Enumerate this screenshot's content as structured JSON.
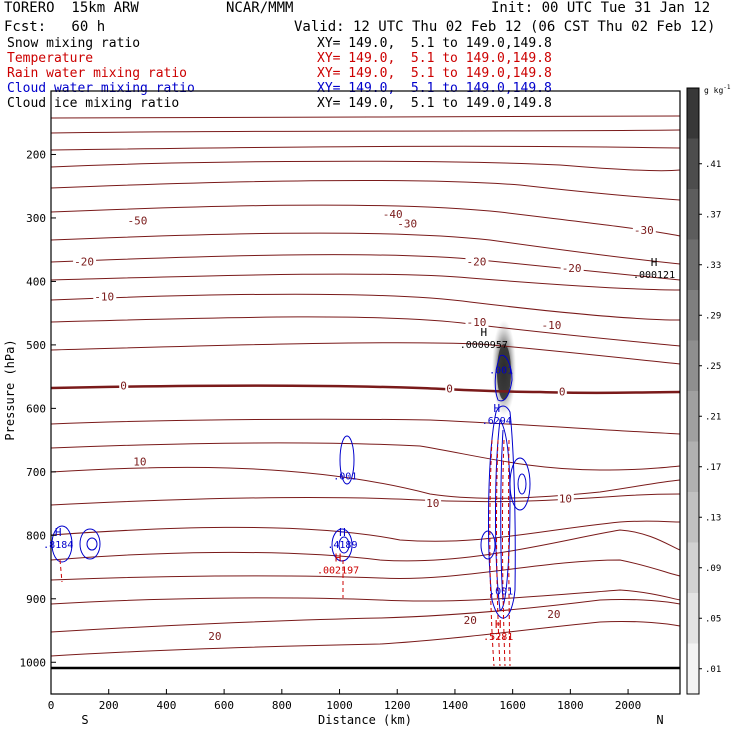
{
  "header": {
    "model": "TORERO  15km ARW",
    "org": "NCAR/MMM",
    "init": "Init: 00 UTC Tue 31 Jan 12",
    "fcst": "Fcst:   60 h",
    "valid": "Valid: 12 UTC Thu 02 Feb 12 (06 CST Thu 02 Feb 12)"
  },
  "fields": [
    {
      "name": "Snow mixing ratio",
      "xy": "XY= 149.0,  5.1 to 149.0,149.8",
      "color": "#000000"
    },
    {
      "name": "Temperature",
      "xy": "XY= 149.0,  5.1 to 149.0,149.8",
      "color": "#cc0000"
    },
    {
      "name": "Rain water mixing ratio",
      "xy": "XY= 149.0,  5.1 to 149.0,149.8",
      "color": "#cc0000"
    },
    {
      "name": "Cloud water mixing ratio",
      "xy": "XY= 149.0,  5.1 to 149.0,149.8",
      "color": "#0000cc"
    },
    {
      "name": "Cloud ice mixing ratio",
      "xy": "XY= 149.0,  5.1 to 149.0,149.8",
      "color": "#000000"
    }
  ],
  "chart_data": {
    "type": "cross-section",
    "xlabel": "Distance (km)",
    "ylabel": "Pressure (hPa)",
    "xlim": [
      0,
      2180
    ],
    "ylim": [
      1050,
      100
    ],
    "x_ticks": [
      0,
      200,
      400,
      600,
      800,
      1000,
      1200,
      1400,
      1600,
      1800,
      2000
    ],
    "y_ticks": [
      200,
      300,
      400,
      500,
      600,
      700,
      800,
      900,
      1000
    ],
    "x_end_labels": {
      "left": "S",
      "right": "N"
    },
    "grid": false,
    "temperature_labels": [
      {
        "text": "-50",
        "x": 265,
        "p": 310
      },
      {
        "text": "-40",
        "x": 1150,
        "p": 300
      },
      {
        "text": "-30",
        "x": 1200,
        "p": 315
      },
      {
        "text": "-30",
        "x": 2020,
        "p": 325
      },
      {
        "text": "-20",
        "x": 80,
        "p": 375
      },
      {
        "text": "-20",
        "x": 1440,
        "p": 375
      },
      {
        "text": "-20",
        "x": 1770,
        "p": 385
      },
      {
        "text": "-10",
        "x": 150,
        "p": 430
      },
      {
        "text": "-10",
        "x": 1440,
        "p": 470
      },
      {
        "text": "-10",
        "x": 1700,
        "p": 475
      },
      {
        "text": "0",
        "x": 240,
        "p": 570
      },
      {
        "text": "0",
        "x": 1370,
        "p": 575
      },
      {
        "text": "0",
        "x": 1760,
        "p": 580
      },
      {
        "text": "10",
        "x": 285,
        "p": 690
      },
      {
        "text": "10",
        "x": 1300,
        "p": 755
      },
      {
        "text": "10",
        "x": 1760,
        "p": 748
      },
      {
        "text": "20",
        "x": 545,
        "p": 965
      },
      {
        "text": "20",
        "x": 1430,
        "p": 940
      },
      {
        "text": "20",
        "x": 1720,
        "p": 930
      }
    ],
    "extrema_labels": [
      {
        "letter": "H",
        "value": ".000121",
        "x": 2090,
        "p": 395,
        "color": "#000000"
      },
      {
        "letter": "H",
        "value": ".0000957",
        "x": 1500,
        "p": 505,
        "color": "#000000"
      },
      {
        "letter": "H",
        "value": ".6294",
        "x": 1545,
        "p": 625,
        "color": "#0000cc"
      },
      {
        "letter": "H",
        "value": ".8184",
        "x": 25,
        "p": 820,
        "color": "#0000cc"
      },
      {
        "letter": "H",
        "value": ".4189",
        "x": 1010,
        "p": 820,
        "color": "#0000cc"
      },
      {
        "letter": "H",
        "value": ".002197",
        "x": 995,
        "p": 860,
        "color": "#cc0000"
      },
      {
        "letter": "H",
        "value": ".5281",
        "x": 1550,
        "p": 965,
        "color": "#cc0000"
      }
    ],
    "contour_value_labels": [
      {
        "text": ".001",
        "x": 1020,
        "p": 712,
        "color": "#0000cc"
      },
      {
        "text": ".001",
        "x": 1560,
        "p": 545,
        "color": "#0000cc"
      },
      {
        "text": ".001",
        "x": 1560,
        "p": 893,
        "color": "#0000cc"
      }
    ],
    "colorbar": {
      "units": "g kg",
      "units_exp": "-1",
      "ticks": [
        ".41",
        ".37",
        ".33",
        ".29",
        ".25",
        ".21",
        ".17",
        ".13",
        ".09",
        ".05",
        ".01"
      ]
    }
  }
}
